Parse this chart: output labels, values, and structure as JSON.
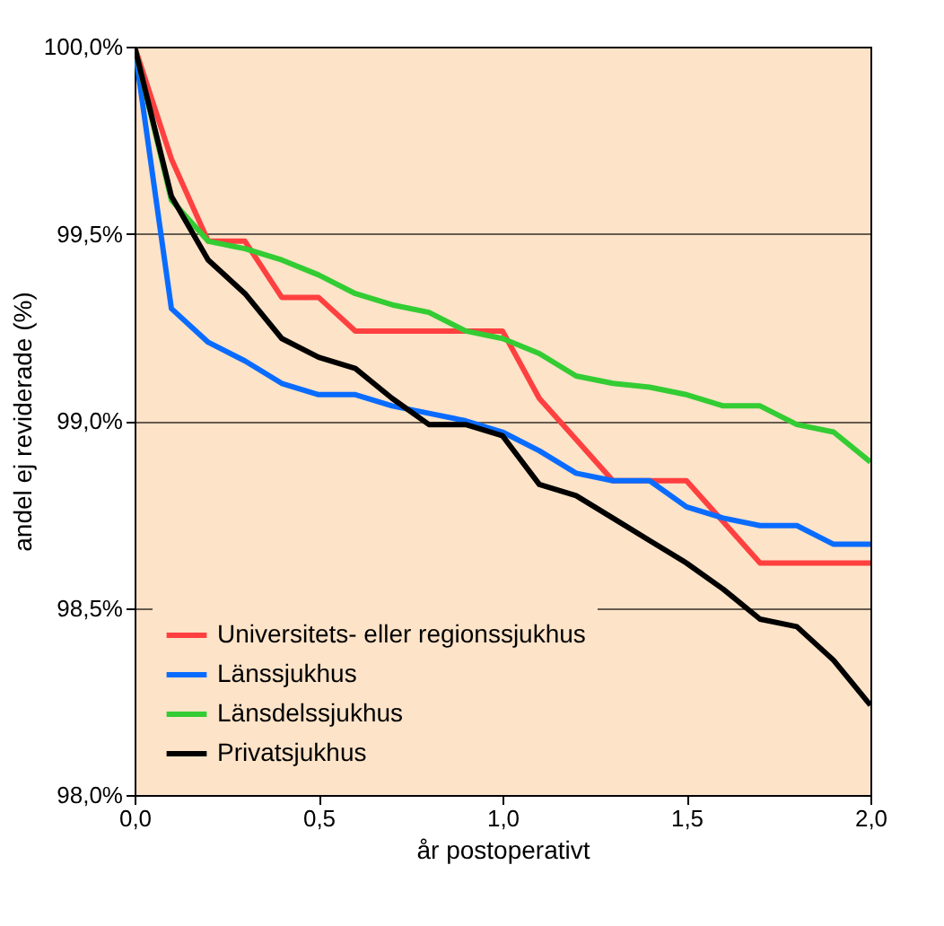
{
  "chart_data": {
    "type": "line",
    "xlabel": "år postoperativt",
    "ylabel": "andel ej reviderade (%)",
    "x": [
      0,
      0.1,
      0.2,
      0.3,
      0.4,
      0.5,
      0.6,
      0.7,
      0.8,
      0.9,
      1.0,
      1.1,
      1.2,
      1.3,
      1.4,
      1.5,
      1.6,
      1.7,
      1.8,
      1.9,
      2.0
    ],
    "series": [
      {
        "name": "Universitets- eller regionssjukhus",
        "color": "#ff4040",
        "values": [
          100,
          99.7,
          99.48,
          99.48,
          99.33,
          99.33,
          99.24,
          99.24,
          99.24,
          99.24,
          99.24,
          99.06,
          98.95,
          98.84,
          98.84,
          98.84,
          98.73,
          98.62,
          98.62,
          98.62,
          98.62
        ]
      },
      {
        "name": "Länssjukhus",
        "color": "#0a6cff",
        "values": [
          100,
          99.3,
          99.21,
          99.16,
          99.1,
          99.07,
          99.07,
          99.04,
          99.02,
          99.0,
          98.97,
          98.92,
          98.86,
          98.84,
          98.84,
          98.77,
          98.74,
          98.72,
          98.72,
          98.67,
          98.67
        ]
      },
      {
        "name": "Länsdelssjukhus",
        "color": "#33cc33",
        "values": [
          100,
          99.59,
          99.48,
          99.46,
          99.43,
          99.39,
          99.34,
          99.31,
          99.29,
          99.24,
          99.22,
          99.18,
          99.12,
          99.1,
          99.09,
          99.07,
          99.04,
          99.04,
          98.99,
          98.97,
          98.89
        ]
      },
      {
        "name": "Privatsjukhus",
        "color": "#000000",
        "values": [
          100,
          99.6,
          99.43,
          99.34,
          99.22,
          99.17,
          99.14,
          99.06,
          98.99,
          98.99,
          98.96,
          98.83,
          98.8,
          98.74,
          98.68,
          98.62,
          98.55,
          98.47,
          98.45,
          98.36,
          98.24
        ]
      }
    ],
    "xlim": [
      0,
      2.0
    ],
    "xticks": [
      {
        "value": 0,
        "label": "0,0"
      },
      {
        "value": 0.5,
        "label": "0,5"
      },
      {
        "value": 1.0,
        "label": "1,0"
      },
      {
        "value": 1.5,
        "label": "1,5"
      },
      {
        "value": 2.0,
        "label": "2,0"
      }
    ],
    "ylim": [
      98.0,
      100.0
    ],
    "yticks": [
      {
        "value": 98.0,
        "label": "98,0%"
      },
      {
        "value": 98.5,
        "label": "98,5%"
      },
      {
        "value": 99.0,
        "label": "99,0%"
      },
      {
        "value": 99.5,
        "label": "99,5%"
      },
      {
        "value": 100.0,
        "label": "100,0%"
      }
    ],
    "grid": "y",
    "legend": "bottom left",
    "marker": "none",
    "line_style": "solid"
  }
}
